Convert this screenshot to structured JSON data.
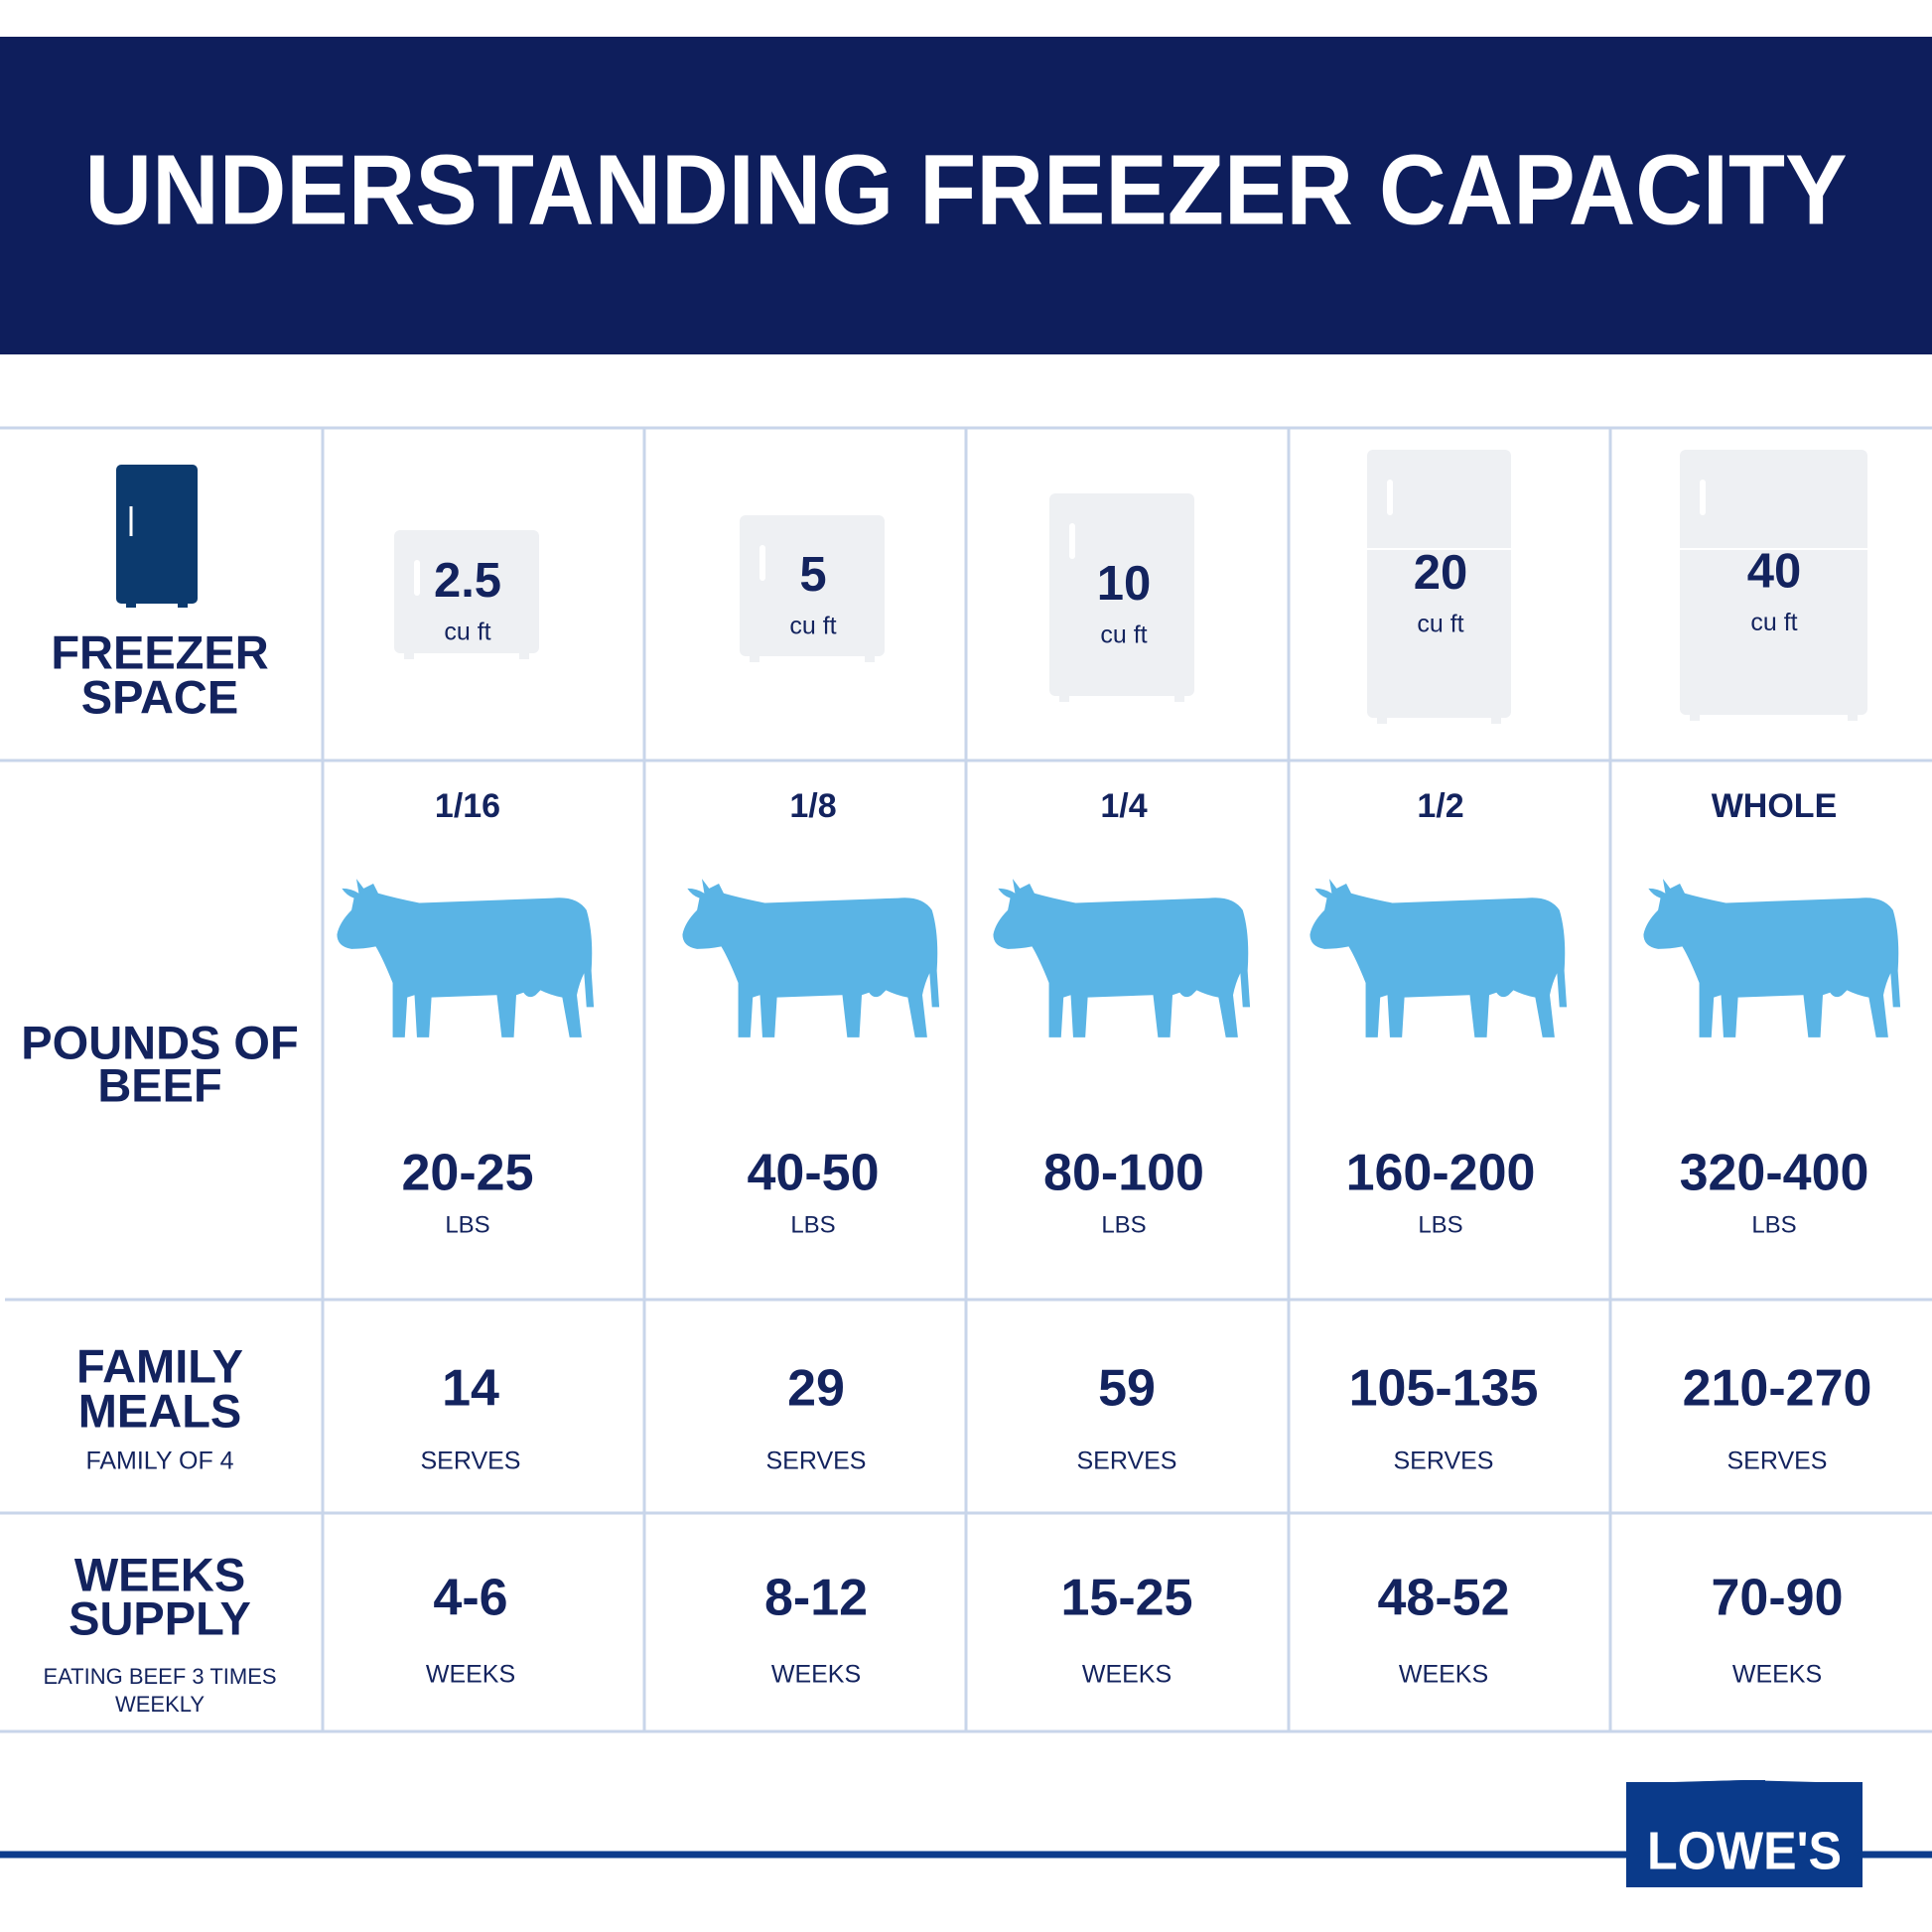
{
  "header": {
    "title": "UNDERSTANDING FREEZER CAPACITY"
  },
  "table": {
    "row_labels": [
      {
        "lines": [
          "FREEZER",
          "SPACE"
        ]
      },
      {
        "lines": [
          "POUNDS OF",
          "BEEF"
        ]
      },
      {
        "lines": [
          "FAMILY",
          "MEALS"
        ],
        "note": [
          "FAMILY OF 4"
        ]
      },
      {
        "lines": [
          "WEEKS",
          "SUPPLY"
        ],
        "note": [
          "EATING BEEF 3 TIMES",
          "WEEKLY"
        ]
      }
    ],
    "columns": [
      {
        "capacity": "2.5",
        "capacity_unit": "cu ft",
        "portion": "1/16",
        "beef": "20-25",
        "beef_unit": "LBS",
        "meals": "14",
        "meals_unit": "SERVES",
        "weeks": "4-6",
        "weeks_unit": "WEEKS"
      },
      {
        "capacity": "5",
        "capacity_unit": "cu ft",
        "portion": "1/8",
        "beef": "40-50",
        "beef_unit": "LBS",
        "meals": "29",
        "meals_unit": "SERVES",
        "weeks": "8-12",
        "weeks_unit": "WEEKS"
      },
      {
        "capacity": "10",
        "capacity_unit": "cu ft",
        "portion": "1/4",
        "beef": "80-100",
        "beef_unit": "LBS",
        "meals": "59",
        "meals_unit": "SERVES",
        "weeks": "15-25",
        "weeks_unit": "WEEKS"
      },
      {
        "capacity": "20",
        "capacity_unit": "cu ft",
        "portion": "1/2",
        "beef": "160-200",
        "beef_unit": "LBS",
        "meals": "105-135",
        "meals_unit": "SERVES",
        "weeks": "48-52",
        "weeks_unit": "WEEKS"
      },
      {
        "capacity": "40",
        "capacity_unit": "cu ft",
        "portion": "WHOLE",
        "beef": "320-400",
        "beef_unit": "LBS",
        "meals": "210-270",
        "meals_unit": "SERVES",
        "weeks": "70-90",
        "weeks_unit": "WEEKS"
      }
    ]
  },
  "logo": "LOWE'S"
}
